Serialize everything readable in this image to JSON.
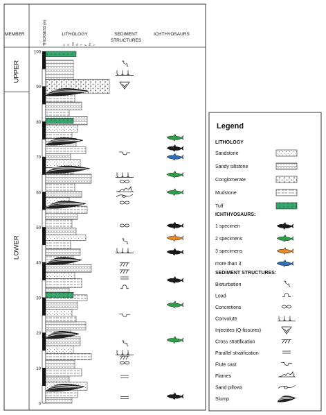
{
  "columns": {
    "member": "MEMBER",
    "thickness": "THICKNESS (m)",
    "lithology": "LITHOLOGY",
    "sediment_line1": "SEDIMENT",
    "sediment_line2": "STRUCTURES",
    "ichthyosaurs": "ICHTHYOSAURS"
  },
  "lithology_scale": [
    "C",
    "S",
    "Ssi",
    "Si",
    "T",
    "F",
    "Fs",
    "Y"
  ],
  "members": [
    {
      "name": "UPPER",
      "from_m": 88.5,
      "to_m": 100
    },
    {
      "name": "LOWER",
      "from_m": 0,
      "to_m": 88.5
    }
  ],
  "thickness_ticks": [
    "0",
    "10",
    "20",
    "30",
    "40",
    "50",
    "60",
    "70",
    "80",
    "90",
    "100"
  ],
  "ichthyosaur_occurrences": [
    {
      "meters": 75.5,
      "specimens": "2 specimens"
    },
    {
      "meters": 72.5,
      "specimens": "1 specimen"
    },
    {
      "meters": 70,
      "specimens": "more than 3"
    },
    {
      "meters": 65,
      "specimens": "2 specimens"
    },
    {
      "meters": 60,
      "specimens": "2 specimens"
    },
    {
      "meters": 50.5,
      "specimens": "1 specimen"
    },
    {
      "meters": 47,
      "specimens": "3 specimens"
    },
    {
      "meters": 43,
      "specimens": "1 specimen"
    },
    {
      "meters": 35,
      "specimens": "1 specimen"
    },
    {
      "meters": 28,
      "specimens": "2 specimens"
    },
    {
      "meters": 18,
      "specimens": "2 specimens"
    },
    {
      "meters": 2,
      "specimens": "1 specimen"
    }
  ],
  "sediment_occurrences": [
    {
      "meters": 96.5,
      "structure": "Bioturbation"
    },
    {
      "meters": 94,
      "structure": "Convolute"
    },
    {
      "meters": 90.5,
      "structure": "Injectites (Q-fissures)"
    },
    {
      "meters": 71,
      "structure": "Flute cast"
    },
    {
      "meters": 65,
      "structure": "Convolute"
    },
    {
      "meters": 63,
      "structure": "Concretions"
    },
    {
      "meters": 60.5,
      "structure": "Flames"
    },
    {
      "meters": 59,
      "structure": "Sand pillows"
    },
    {
      "meters": 57,
      "structure": "Concretions"
    },
    {
      "meters": 50.5,
      "structure": "Concretions"
    },
    {
      "meters": 46,
      "structure": "Bioturbation"
    },
    {
      "meters": 43.5,
      "structure": "Convolute"
    },
    {
      "meters": 39.5,
      "structure": "Cross stratification"
    },
    {
      "meters": 37.5,
      "structure": "Cross stratification"
    },
    {
      "meters": 35.5,
      "structure": "Parallel stratification"
    },
    {
      "meters": 33,
      "structure": "Load"
    },
    {
      "meters": 25,
      "structure": "Flute cast"
    },
    {
      "meters": 17,
      "structure": "Bioturbation"
    },
    {
      "meters": 14.5,
      "structure": "Convolute"
    },
    {
      "meters": 13,
      "structure": "Cross stratification"
    },
    {
      "meters": 11.5,
      "structure": "Concretions"
    },
    {
      "meters": 7.5,
      "structure": "Parallel stratification"
    },
    {
      "meters": 1.5,
      "structure": "Parallel stratification"
    }
  ],
  "slump_levels_m": [
    88,
    74,
    66,
    56,
    40,
    19,
    4
  ],
  "tuff_levels_m": [
    98.5,
    79.5,
    30
  ],
  "legend": {
    "title": "Legend",
    "lithology_heading": "LITHOLOGY",
    "lithology": [
      {
        "label": "Sandstone",
        "pattern": "sandstone"
      },
      {
        "label": "Sandy siltstone",
        "pattern": "sandy-siltstone"
      },
      {
        "label": "Conglomerate",
        "pattern": "conglomerate"
      },
      {
        "label": "Mudstone",
        "pattern": "mudstone"
      },
      {
        "label": "Tuff",
        "pattern": "tuff"
      }
    ],
    "ichthyosaurs_heading": "ICHTHYOSAURS:",
    "ichthyosaurs": [
      {
        "label": "1 specimen",
        "color": "#1a1a1a"
      },
      {
        "label": "2 specimens",
        "color": "#2e9e4a"
      },
      {
        "label": "3 specimens",
        "color": "#e8892b"
      },
      {
        "label": "more than 3",
        "color": "#2f6fb7"
      }
    ],
    "sediment_heading": "SEDIMENT STRUCTURES:",
    "sediment": [
      {
        "label": "Bioturbation",
        "symbol": "bioturbation-icon"
      },
      {
        "label": "Load",
        "symbol": "load-icon"
      },
      {
        "label": "Concretions",
        "symbol": "concretions-icon"
      },
      {
        "label": "Convolute",
        "symbol": "convolute-icon"
      },
      {
        "label": "Injectites (Q-fissures)",
        "symbol": "injectites-icon"
      },
      {
        "label": "Cross stratification",
        "symbol": "cross-stratification-icon"
      },
      {
        "label": "Parallel stratification",
        "symbol": "parallel-stratification-icon"
      },
      {
        "label": "Flute cast",
        "symbol": "flute-cast-icon"
      },
      {
        "label": "Flames",
        "symbol": "flames-icon"
      },
      {
        "label": "Sand pillows",
        "symbol": "sand-pillows-icon"
      },
      {
        "label": "Slump",
        "symbol": "slump-icon"
      }
    ]
  }
}
